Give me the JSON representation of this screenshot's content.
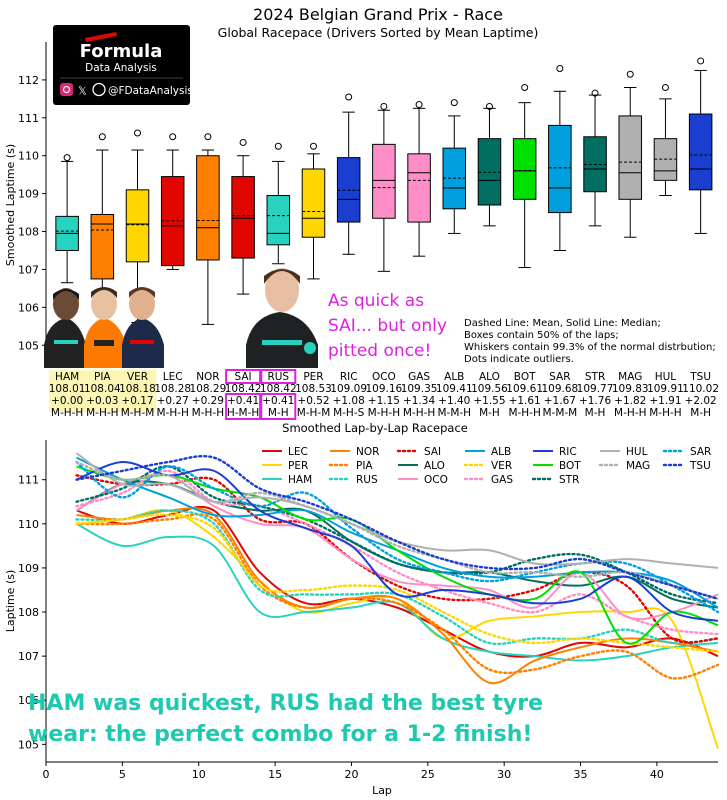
{
  "title": "2024 Belgian Grand Prix - Race",
  "subtitle": "Global Racepace (Drivers Sorted by Mean Laptime)",
  "logo": {
    "line1": "Formula",
    "line2": "Data Analysis",
    "handle": "@FDataAnalysis",
    "icons": [
      "instagram-icon",
      "x-icon",
      "threads-icon"
    ]
  },
  "annotation_sai": [
    "As quick as",
    "SAI... but only",
    "pitted once!"
  ],
  "legend_note": [
    "Dashed Line: Mean, Solid Line: Median;",
    "Boxes contain 50% of the laps;",
    "Whiskers contain 99.3% of the normal distrbution;",
    "Dots indicate outliers."
  ],
  "bottom_caption": [
    "HAM was quickest, RUS had the best tyre",
    "wear: the perfect combo for a 1-2 finish!"
  ],
  "highlight_color": "#fbf6b3",
  "box_highlight_color": "#e020e0",
  "chart_data": [
    {
      "type": "box",
      "title": "Global Racepace (Drivers Sorted by Mean Laptime)",
      "ylabel": "Smoothed Laptime (s)",
      "xlabel": "Smoothed Lap-by-Lap Racepace",
      "ylim": [
        104.4,
        113.0
      ],
      "yticks": [
        105,
        106,
        107,
        108,
        109,
        110,
        111,
        112
      ],
      "drivers": [
        {
          "code": "HAM",
          "mean": "108.01",
          "gap": "+0.00",
          "tyres": "M-H-H",
          "color": "#27d3bf",
          "q1": 107.5,
          "median": 107.95,
          "meanv": 108.01,
          "q3": 108.4,
          "wlo": 106.65,
          "whi": 109.85,
          "outliers": [
            109.95
          ]
        },
        {
          "code": "PIA",
          "mean": "108.04",
          "gap": "+0.03",
          "tyres": "M-H-H",
          "color": "#ff8000",
          "q1": 106.75,
          "median": 108.2,
          "meanv": 108.04,
          "q3": 108.45,
          "wlo": 106.15,
          "whi": 110.15,
          "outliers": [
            110.5
          ]
        },
        {
          "code": "VER",
          "mean": "108.18",
          "gap": "+0.17",
          "tyres": "M-H-M",
          "color": "#ffd700",
          "q1": 107.2,
          "median": 108.2,
          "meanv": 108.18,
          "q3": 109.1,
          "wlo": 105.6,
          "whi": 110.15,
          "outliers": [
            110.6
          ]
        },
        {
          "code": "LEC",
          "mean": "108.28",
          "gap": "+0.27",
          "tyres": "M-H-H",
          "color": "#e10600",
          "q1": 107.1,
          "median": 108.15,
          "meanv": 108.28,
          "q3": 109.45,
          "wlo": 107.0,
          "whi": 110.15,
          "outliers": [
            110.5
          ]
        },
        {
          "code": "NOR",
          "mean": "108.29",
          "gap": "+0.29",
          "tyres": "M-H-H",
          "color": "#ff8000",
          "q1": 107.25,
          "median": 108.1,
          "meanv": 108.29,
          "q3": 110.0,
          "wlo": 105.55,
          "whi": 110.15,
          "outliers": [
            110.5
          ]
        },
        {
          "code": "SAI",
          "mean": "108.42",
          "gap": "+0.41",
          "tyres": "H-M-H",
          "color": "#e10600",
          "q1": 107.3,
          "median": 108.35,
          "meanv": 108.42,
          "q3": 109.45,
          "wlo": 106.35,
          "whi": 110.0,
          "outliers": [
            110.35
          ]
        },
        {
          "code": "RUS",
          "mean": "108.42",
          "gap": "+0.41",
          "tyres": "M-H",
          "color": "#27d3bf",
          "q1": 107.65,
          "median": 107.95,
          "meanv": 108.42,
          "q3": 108.95,
          "wlo": 107.15,
          "whi": 109.85,
          "outliers": [
            110.25
          ]
        },
        {
          "code": "PER",
          "mean": "108.53",
          "gap": "+0.52",
          "tyres": "M-H-M",
          "color": "#ffd700",
          "q1": 107.85,
          "median": 108.35,
          "meanv": 108.53,
          "q3": 109.65,
          "wlo": 106.75,
          "whi": 110.05,
          "outliers": [
            110.25
          ]
        },
        {
          "code": "RIC",
          "mean": "109.09",
          "gap": "+1.08",
          "tyres": "M-H-S",
          "color": "#1a3ecf",
          "q1": 108.25,
          "median": 108.85,
          "meanv": 109.09,
          "q3": 109.95,
          "wlo": 107.4,
          "whi": 111.15,
          "outliers": [
            111.55
          ]
        },
        {
          "code": "OCO",
          "mean": "109.16",
          "gap": "+1.15",
          "tyres": "M-H-H",
          "color": "#ff8ec8",
          "q1": 108.35,
          "median": 109.35,
          "meanv": 109.16,
          "q3": 110.3,
          "wlo": 106.95,
          "whi": 111.2,
          "outliers": [
            111.3
          ]
        },
        {
          "code": "GAS",
          "mean": "109.35",
          "gap": "+1.34",
          "tyres": "M-H-H",
          "color": "#ff8ec8",
          "q1": 108.25,
          "median": 109.55,
          "meanv": 109.35,
          "q3": 110.05,
          "wlo": 107.35,
          "whi": 111.25,
          "outliers": [
            111.35
          ]
        },
        {
          "code": "ALB",
          "mean": "109.41",
          "gap": "+1.40",
          "tyres": "M-M-H",
          "color": "#00a0de",
          "q1": 108.6,
          "median": 109.15,
          "meanv": 109.41,
          "q3": 110.2,
          "wlo": 107.95,
          "whi": 111.05,
          "outliers": [
            111.4
          ]
        },
        {
          "code": "ALO",
          "mean": "109.56",
          "gap": "+1.55",
          "tyres": "M-H",
          "color": "#006f62",
          "q1": 108.7,
          "median": 109.35,
          "meanv": 109.56,
          "q3": 110.45,
          "wlo": 108.15,
          "whi": 111.25,
          "outliers": [
            111.3
          ]
        },
        {
          "code": "BOT",
          "mean": "109.61",
          "gap": "+1.61",
          "tyres": "M-H-H",
          "color": "#00e000",
          "q1": 108.85,
          "median": 109.6,
          "meanv": 109.61,
          "q3": 110.45,
          "wlo": 107.05,
          "whi": 111.4,
          "outliers": [
            111.8
          ]
        },
        {
          "code": "SAR",
          "mean": "109.68",
          "gap": "+1.67",
          "tyres": "M-M-M",
          "color": "#00a0de",
          "q1": 108.5,
          "median": 109.15,
          "meanv": 109.68,
          "q3": 110.8,
          "wlo": 107.5,
          "whi": 111.7,
          "outliers": [
            112.3
          ]
        },
        {
          "code": "STR",
          "mean": "109.77",
          "gap": "+1.76",
          "tyres": "M-H",
          "color": "#006f62",
          "q1": 109.05,
          "median": 109.65,
          "meanv": 109.77,
          "q3": 110.5,
          "wlo": 108.15,
          "whi": 111.6,
          "outliers": [
            111.65
          ]
        },
        {
          "code": "MAG",
          "mean": "109.83",
          "gap": "+1.82",
          "tyres": "M-H-H",
          "color": "#b0b0b0",
          "q1": 108.85,
          "median": 109.55,
          "meanv": 109.83,
          "q3": 111.05,
          "wlo": 107.85,
          "whi": 111.8,
          "outliers": [
            112.15
          ]
        },
        {
          "code": "HUL",
          "mean": "109.91",
          "gap": "+1.91",
          "tyres": "M-H-H",
          "color": "#b0b0b0",
          "q1": 109.35,
          "median": 109.6,
          "meanv": 109.91,
          "q3": 110.45,
          "wlo": 108.95,
          "whi": 111.5,
          "outliers": [
            111.8
          ]
        },
        {
          "code": "TSU",
          "mean": "110.02",
          "gap": "+2.02",
          "tyres": "M-H",
          "color": "#1a3ecf",
          "q1": 109.1,
          "median": 109.65,
          "meanv": 110.02,
          "q3": 111.1,
          "wlo": 107.95,
          "whi": 112.25,
          "outliers": [
            112.5
          ]
        }
      ],
      "highlighted_drivers": [
        "SAI",
        "RUS"
      ],
      "highlighted_background": [
        "HAM",
        "PIA",
        "VER"
      ]
    },
    {
      "type": "line",
      "xlabel": "Lap",
      "ylabel": "Laptime (s)",
      "xlim": [
        0,
        44
      ],
      "ylim": [
        104.6,
        111.9
      ],
      "xticks": [
        0,
        5,
        10,
        15,
        20,
        25,
        30,
        35,
        40
      ],
      "yticks": [
        105,
        106,
        107,
        108,
        109,
        110,
        111
      ],
      "x": [
        2,
        5,
        8,
        11,
        14,
        17,
        20,
        23,
        26,
        29,
        32,
        35,
        38,
        41,
        44
      ],
      "series": [
        {
          "name": "LEC",
          "color": "#e10600",
          "dash": "solid",
          "values": [
            110.3,
            110.0,
            110.2,
            110.3,
            108.9,
            108.2,
            108.3,
            108.1,
            107.6,
            107.1,
            107.0,
            107.3,
            107.2,
            107.4,
            107.0
          ]
        },
        {
          "name": "PER",
          "color": "#ffd700",
          "dash": "solid",
          "values": [
            110.0,
            110.1,
            110.3,
            109.7,
            108.7,
            108.0,
            108.2,
            108.3,
            107.4,
            107.8,
            107.9,
            108.0,
            108.0,
            107.8,
            104.9
          ]
        },
        {
          "name": "HAM",
          "color": "#27d3bf",
          "dash": "solid",
          "values": [
            110.0,
            109.5,
            109.7,
            109.5,
            108.0,
            108.0,
            108.1,
            108.2,
            107.4,
            107.1,
            107.0,
            106.9,
            107.0,
            107.2,
            107.3
          ]
        },
        {
          "name": "NOR",
          "color": "#ff8000",
          "dash": "solid",
          "values": [
            110.2,
            110.1,
            110.3,
            110.2,
            108.7,
            108.1,
            108.3,
            108.3,
            107.5,
            106.4,
            106.9,
            107.2,
            107.4,
            107.3,
            107.1
          ]
        },
        {
          "name": "PIA",
          "color": "#ff8000",
          "dash": "dotted",
          "values": [
            110.0,
            110.0,
            110.1,
            110.1,
            108.6,
            108.1,
            108.3,
            108.2,
            107.6,
            106.7,
            106.7,
            107.0,
            107.1,
            106.5,
            106.8
          ]
        },
        {
          "name": "RUS",
          "color": "#27d3bf",
          "dash": "dotted",
          "values": [
            110.1,
            110.1,
            110.3,
            110.0,
            108.5,
            108.4,
            108.4,
            108.4,
            107.9,
            107.3,
            107.4,
            107.4,
            107.6,
            107.3,
            107.4
          ]
        },
        {
          "name": "SAI",
          "color": "#e10600",
          "dash": "dotted",
          "values": [
            111.1,
            110.9,
            110.9,
            111.0,
            110.1,
            110.0,
            109.2,
            108.6,
            108.3,
            108.3,
            108.5,
            108.9,
            108.6,
            107.4,
            107.4
          ]
        },
        {
          "name": "ALO",
          "color": "#006f62",
          "dash": "solid",
          "values": [
            110.3,
            110.9,
            110.9,
            110.5,
            110.3,
            110.3,
            109.6,
            109.1,
            108.9,
            108.9,
            108.7,
            108.6,
            108.8,
            108.3,
            108.1
          ]
        },
        {
          "name": "OCO",
          "color": "#ff8ec8",
          "dash": "solid",
          "values": [
            110.3,
            110.9,
            111.1,
            110.4,
            110.0,
            109.9,
            109.2,
            108.7,
            108.6,
            108.5,
            108.1,
            108.9,
            107.9,
            108.0,
            108.4
          ]
        },
        {
          "name": "VER",
          "color": "#ffd700",
          "dash": "dotted",
          "values": [
            110.0,
            110.1,
            110.2,
            109.9,
            108.6,
            108.5,
            108.6,
            108.5,
            108.0,
            107.5,
            107.3,
            107.4,
            107.3,
            107.2,
            107.1
          ]
        },
        {
          "name": "GAS",
          "color": "#ff8ec8",
          "dash": "dotted",
          "values": [
            110.4,
            110.7,
            111.2,
            110.5,
            110.4,
            110.0,
            109.5,
            108.9,
            108.5,
            108.2,
            108.0,
            108.4,
            107.9,
            107.6,
            107.5
          ]
        },
        {
          "name": "STR",
          "color": "#006f62",
          "dash": "dotted",
          "values": [
            110.5,
            110.8,
            111.3,
            110.6,
            110.4,
            110.1,
            109.6,
            109.1,
            108.9,
            108.9,
            109.2,
            109.3,
            108.9,
            108.4,
            108.2
          ]
        },
        {
          "name": "ALB",
          "color": "#00a0de",
          "dash": "solid",
          "values": [
            111.5,
            111.0,
            110.6,
            110.2,
            110.2,
            110.3,
            109.8,
            109.4,
            109.0,
            108.8,
            108.8,
            108.9,
            108.9,
            108.7,
            108.1
          ]
        },
        {
          "name": "BOT",
          "color": "#00e000",
          "dash": "solid",
          "values": [
            111.3,
            111.0,
            111.1,
            110.8,
            110.6,
            110.1,
            110.1,
            109.4,
            108.8,
            108.4,
            108.3,
            108.9,
            107.3,
            108.0,
            107.7
          ]
        },
        {
          "name": "SAR",
          "color": "#00a0de",
          "dash": "dotted",
          "values": [
            111.4,
            110.6,
            111.3,
            110.8,
            110.4,
            110.7,
            109.9,
            109.2,
            108.9,
            108.7,
            108.9,
            109.1,
            109.1,
            108.6,
            108.0
          ]
        },
        {
          "name": "RIC",
          "color": "#1a3ecf",
          "dash": "solid",
          "values": [
            111.0,
            111.4,
            111.1,
            111.2,
            110.3,
            109.9,
            109.5,
            108.4,
            108.5,
            108.4,
            108.2,
            108.3,
            108.8,
            108.0,
            107.8
          ]
        },
        {
          "name": "HUL",
          "color": "#b0b0b0",
          "dash": "solid",
          "values": [
            111.6,
            110.9,
            110.9,
            110.5,
            110.6,
            110.4,
            110.0,
            109.6,
            109.4,
            109.4,
            109.1,
            109.1,
            109.2,
            109.1,
            109.0
          ]
        },
        {
          "name": "MAG",
          "color": "#b0b0b0",
          "dash": "dotted",
          "values": [
            111.4,
            111.0,
            111.1,
            110.5,
            110.7,
            110.4,
            110.0,
            109.5,
            109.2,
            108.9,
            108.9,
            108.8,
            108.9,
            108.6,
            108.3
          ]
        },
        {
          "name": "TSU",
          "color": "#1a3ecf",
          "dash": "dotted",
          "values": [
            111.0,
            111.2,
            111.4,
            111.5,
            110.8,
            110.5,
            110.1,
            109.6,
            109.2,
            109.0,
            109.0,
            109.2,
            108.9,
            108.6,
            108.3
          ]
        }
      ],
      "legend": [
        "LEC",
        "NOR",
        "SAI",
        "ALB",
        "RIC",
        "HUL",
        "SAR",
        "PER",
        "PIA",
        "ALO",
        "VER",
        "BOT",
        "MAG",
        "TSU",
        "HAM",
        "RUS",
        "OCO",
        "GAS",
        "STR"
      ]
    }
  ]
}
